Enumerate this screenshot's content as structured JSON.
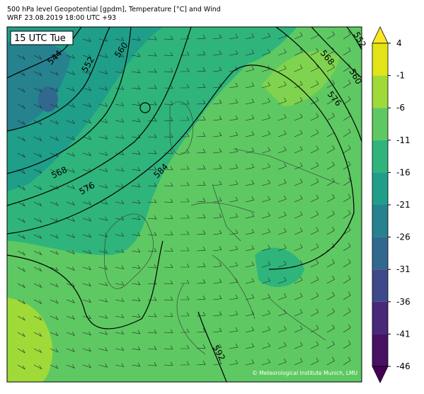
{
  "header": {
    "title": "500 hPa level Geopotential [gpdm], Temperature [°C] and Wind",
    "subtitle": "WRF 23.08.2019 18:00 UTC +93"
  },
  "map": {
    "time_label": "15 UTC Tue",
    "contour_labels": [
      "544",
      "552",
      "560",
      "568",
      "576",
      "584",
      "568",
      "576",
      "560",
      "552",
      "592"
    ],
    "credit": "© Meteorological Institute Munich, LMU"
  },
  "colorbar": {
    "lim": [
      -46,
      4
    ],
    "ticks": [
      4,
      -1,
      -6,
      -11,
      -16,
      -21,
      -26,
      -31,
      -36,
      -41,
      -46
    ],
    "colors": [
      "#fde725",
      "#e2e418",
      "#a0da39",
      "#5ec962",
      "#2fb47c",
      "#1f9e89",
      "#26828e",
      "#31688e",
      "#3e4989",
      "#482878",
      "#471063",
      "#440154"
    ]
  }
}
